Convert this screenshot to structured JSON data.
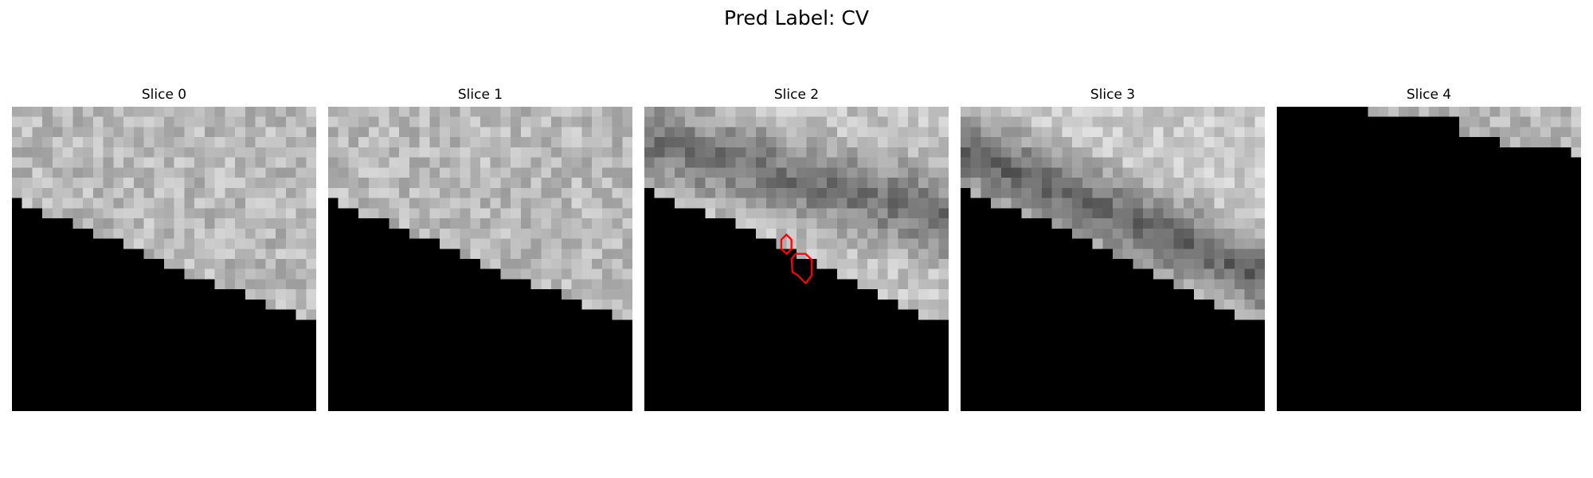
{
  "figure": {
    "title": "Pred Label: CV"
  },
  "panels": [
    {
      "title": "Slice 0",
      "mask_edge_row": [
        9,
        10,
        10,
        11,
        11,
        11,
        12,
        12,
        13,
        13,
        13,
        14,
        14,
        15,
        15,
        16,
        16,
        17,
        17,
        17,
        18,
        18,
        18,
        19,
        19,
        20,
        20,
        20,
        21,
        21
      ],
      "texture": "light",
      "seed": 11
    },
    {
      "title": "Slice 1",
      "mask_edge_row": [
        9,
        10,
        10,
        11,
        11,
        11,
        12,
        12,
        13,
        13,
        13,
        14,
        14,
        15,
        15,
        16,
        16,
        17,
        17,
        17,
        18,
        18,
        18,
        19,
        19,
        20,
        20,
        20,
        21,
        21
      ],
      "texture": "light",
      "seed": 23
    },
    {
      "title": "Slice 2",
      "mask_edge_row": [
        8,
        9,
        9,
        10,
        10,
        10,
        11,
        11,
        11,
        12,
        12,
        13,
        13,
        14,
        14,
        15,
        15,
        16,
        16,
        17,
        17,
        18,
        18,
        19,
        19,
        20,
        20,
        21,
        21,
        21
      ],
      "texture": "dark-band",
      "seed": 37,
      "contours": true
    },
    {
      "title": "Slice 3",
      "mask_edge_row": [
        8,
        9,
        9,
        10,
        10,
        10,
        11,
        11,
        11,
        12,
        12,
        13,
        13,
        14,
        14,
        15,
        15,
        16,
        16,
        17,
        17,
        18,
        18,
        19,
        19,
        20,
        20,
        21,
        21,
        21
      ],
      "texture": "dark-band2",
      "seed": 51
    },
    {
      "title": "Slice 4",
      "mask_edge_row": [
        0,
        0,
        0,
        0,
        0,
        0,
        0,
        0,
        0,
        1,
        1,
        1,
        1,
        1,
        1,
        1,
        1,
        1,
        2,
        2,
        2,
        2,
        3,
        3,
        3,
        3,
        3,
        3,
        3,
        4
      ],
      "texture": "light",
      "seed": 67
    }
  ],
  "colors": {
    "mask": "#000000",
    "contour": "#ff0000"
  }
}
